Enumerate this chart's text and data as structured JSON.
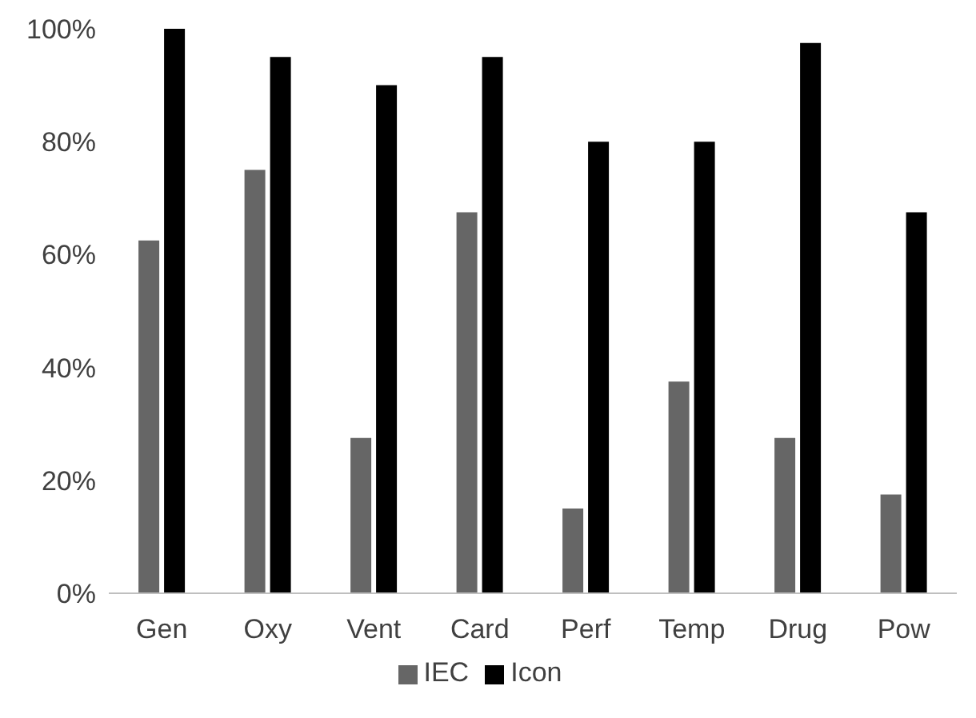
{
  "chart_data": {
    "type": "bar",
    "categories": [
      "Gen",
      "Oxy",
      "Vent",
      "Card",
      "Perf",
      "Temp",
      "Drug",
      "Pow"
    ],
    "series": [
      {
        "name": "IEC",
        "color": "#666666",
        "values": [
          62.5,
          75,
          27.5,
          67.5,
          15,
          37.5,
          27.5,
          17.5
        ]
      },
      {
        "name": "Icon",
        "color": "#000000",
        "values": [
          100,
          95,
          90,
          95,
          80,
          80,
          97.5,
          67.5
        ]
      }
    ],
    "ylim": [
      0,
      100
    ],
    "yticks": [
      {
        "value": 0,
        "label": "0%"
      },
      {
        "value": 20,
        "label": "20%"
      },
      {
        "value": 40,
        "label": "40%"
      },
      {
        "value": 60,
        "label": "60%"
      },
      {
        "value": 80,
        "label": "80%"
      },
      {
        "value": 100,
        "label": "100%"
      }
    ],
    "grid": false,
    "legend": "bottom"
  }
}
